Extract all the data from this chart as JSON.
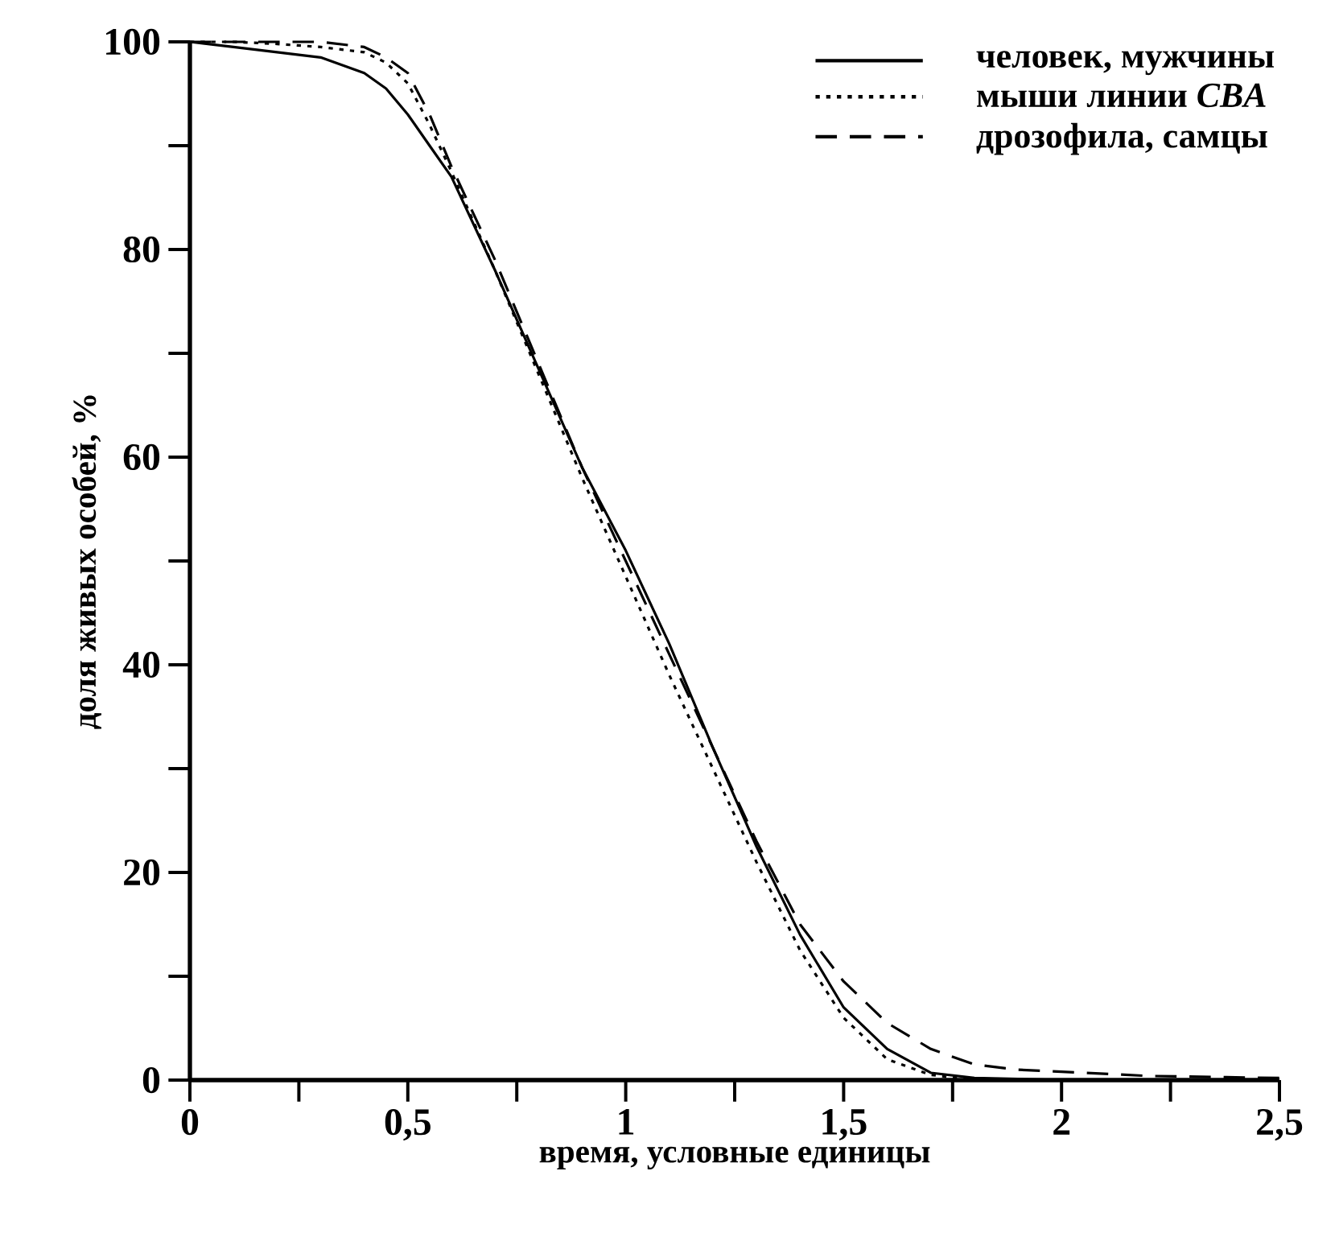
{
  "chart_data": {
    "type": "line",
    "xlabel": "время, условные единицы",
    "ylabel": "доля живых особей, %",
    "xlim": [
      0,
      2.5
    ],
    "ylim": [
      0,
      100
    ],
    "xticks": [
      0,
      {
        "value": 0.25,
        "label": null
      },
      {
        "value": 0.5,
        "label": "0,5"
      },
      {
        "value": 0.75,
        "label": null
      },
      1,
      {
        "value": 1.25,
        "label": null
      },
      {
        "value": 1.5,
        "label": "1,5"
      },
      {
        "value": 1.75,
        "label": null
      },
      2,
      {
        "value": 2.25,
        "label": null
      },
      {
        "value": 2.5,
        "label": "2,5"
      }
    ],
    "yticks": [
      0,
      {
        "value": 10,
        "label": null
      },
      20,
      {
        "value": 30,
        "label": null
      },
      40,
      {
        "value": 50,
        "label": null
      },
      60,
      {
        "value": 70,
        "label": null
      },
      80,
      {
        "value": 90,
        "label": null
      },
      100
    ],
    "x": [
      0,
      0.1,
      0.2,
      0.3,
      0.4,
      0.45,
      0.5,
      0.55,
      0.6,
      0.7,
      0.8,
      0.9,
      1.0,
      1.1,
      1.2,
      1.3,
      1.4,
      1.5,
      1.6,
      1.7,
      1.8,
      1.9,
      2.0,
      2.2,
      2.5
    ],
    "legend": "top right",
    "grid": false,
    "series": [
      {
        "name": "человек, мужчины",
        "color": "#000000",
        "line_style": "solid",
        "values": [
          100,
          99.5,
          99,
          98.5,
          97,
          95.5,
          93,
          90,
          87,
          78,
          68.5,
          59,
          51,
          42,
          32,
          22.5,
          14,
          7,
          3,
          0.7,
          0.2,
          0.1,
          0,
          0,
          0
        ]
      },
      {
        "name": "мыши линии *CBA*",
        "color": "#000000",
        "line_style": "dotted",
        "x": [
          0,
          0.1,
          0.2,
          0.3,
          0.4,
          0.45,
          0.5,
          0.55,
          0.6,
          0.7,
          0.8,
          0.9,
          1.0,
          1.1,
          1.2,
          1.3,
          1.4,
          1.5,
          1.6,
          1.7,
          1.8,
          2.0
        ],
        "values": [
          100,
          100,
          99.8,
          99.5,
          99,
          98,
          96,
          92,
          87.5,
          78,
          68,
          58,
          48.5,
          39,
          30,
          21,
          12.5,
          6,
          2,
          0.5,
          0,
          0
        ]
      },
      {
        "name": "дрозофила, самцы",
        "color": "#000000",
        "line_style": "dashed",
        "values": [
          100,
          100,
          100,
          100,
          99.5,
          98.5,
          97,
          93,
          88,
          79,
          69,
          59,
          50,
          41,
          32,
          23,
          15,
          9.5,
          5.5,
          3,
          1.5,
          1,
          0.8,
          0.4,
          0.2
        ]
      }
    ]
  }
}
